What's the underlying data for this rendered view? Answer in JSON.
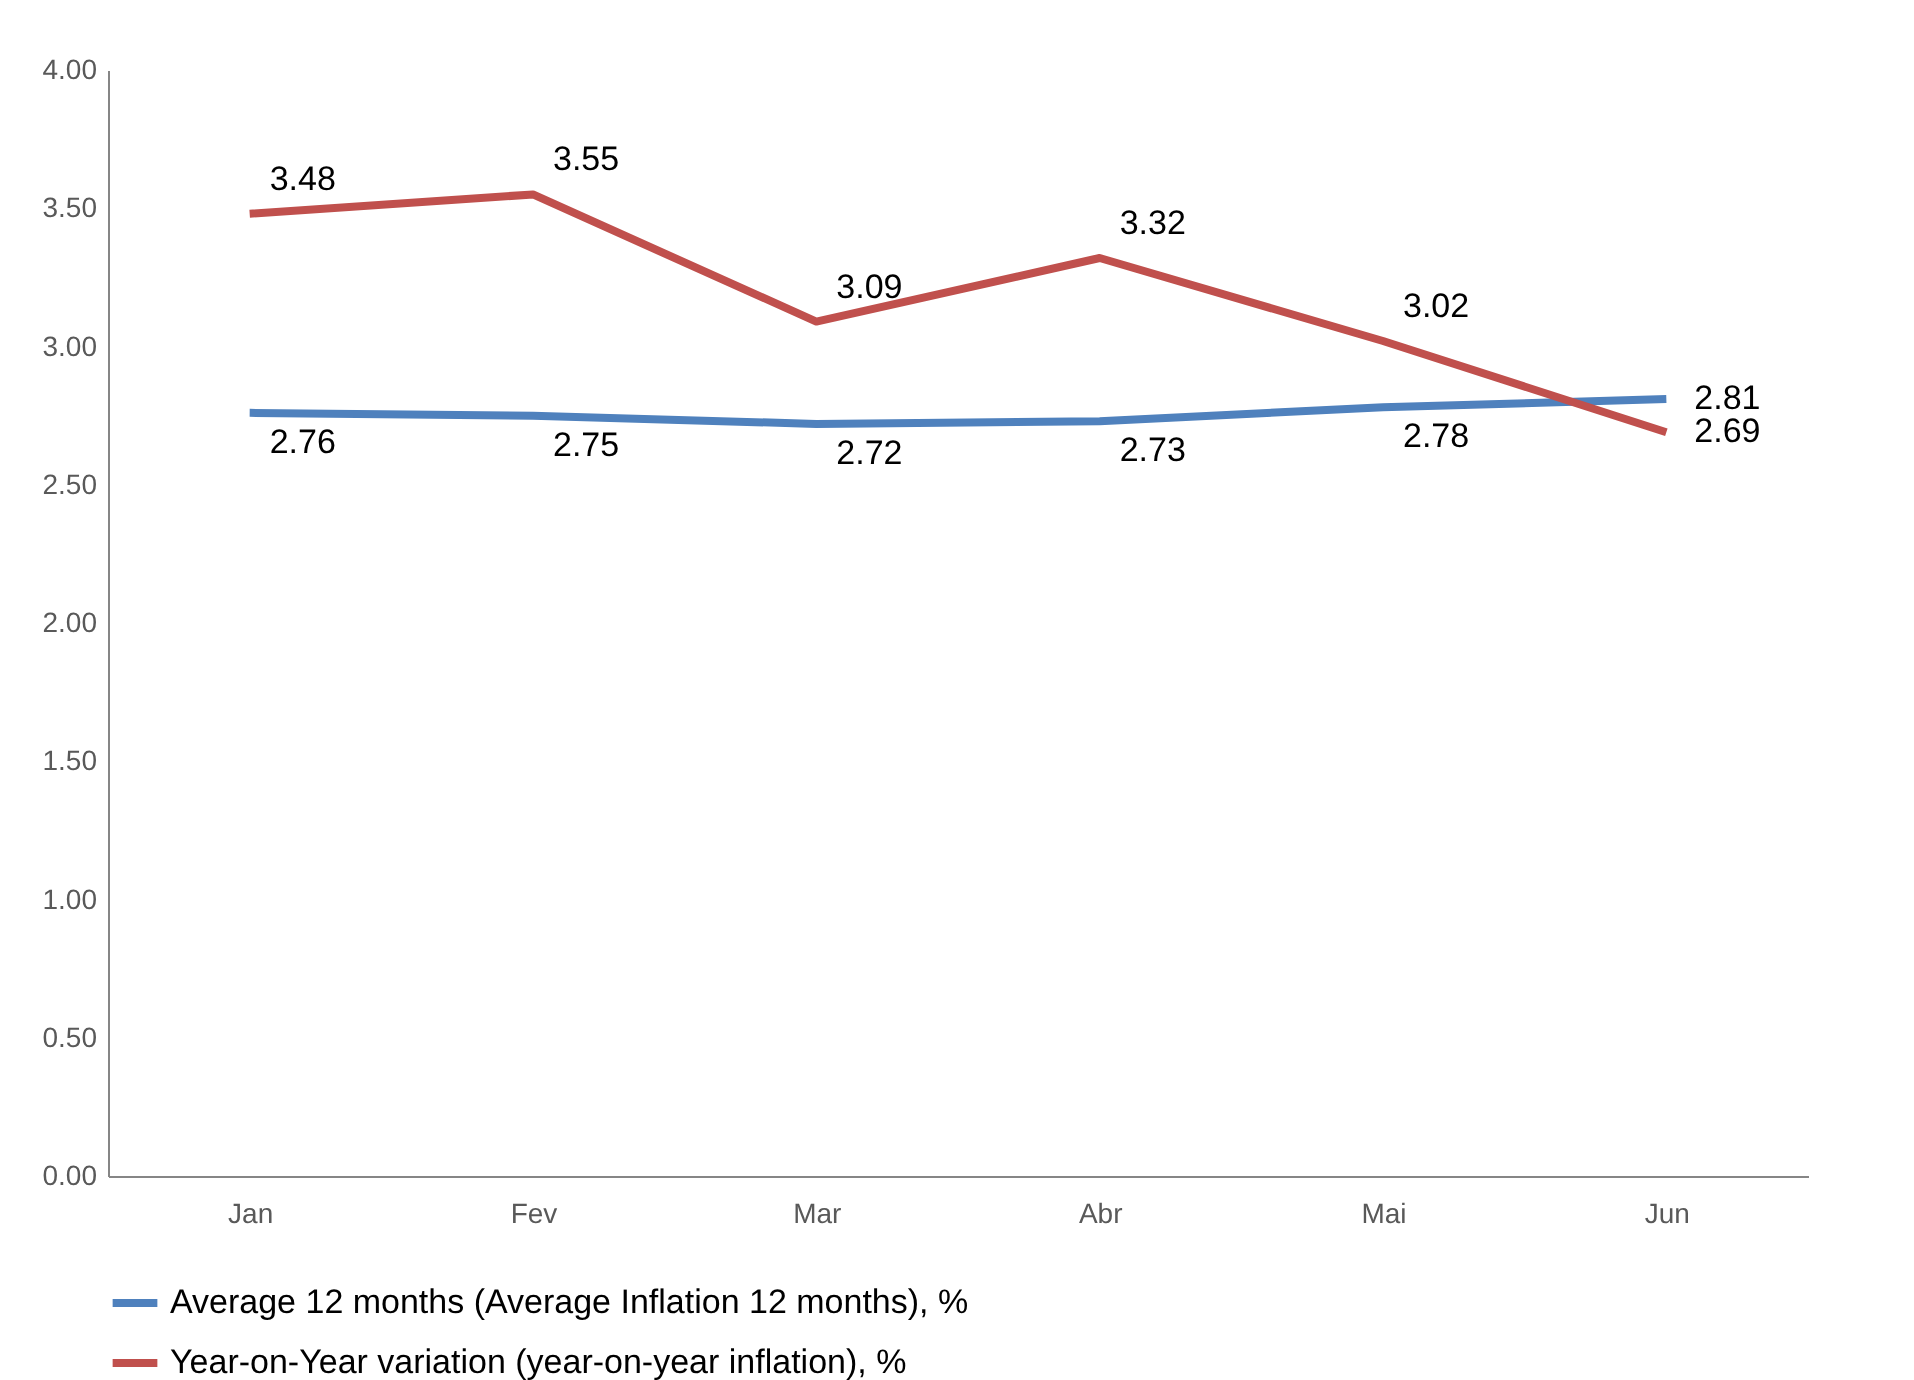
{
  "chart_data": {
    "type": "line",
    "categories": [
      "Jan",
      "Fev",
      "Mar",
      "Abr",
      "Mai",
      "Jun"
    ],
    "series": [
      {
        "name": "Average 12 months (Average Inflation 12 months), %",
        "color": "#4f81bd",
        "values": [
          2.76,
          2.75,
          2.72,
          2.73,
          2.78,
          2.81
        ]
      },
      {
        "name": "Year-on-Year variation (year-on-year inflation), %",
        "color": "#c0504d",
        "values": [
          3.48,
          3.55,
          3.09,
          3.32,
          3.02,
          2.69
        ]
      }
    ],
    "ylim": [
      0,
      4
    ],
    "yticks": [
      {
        "value": 0,
        "label": "0.00"
      },
      {
        "value": 0.5,
        "label": "0.50"
      },
      {
        "value": 1,
        "label": "1.00"
      },
      {
        "value": 1.5,
        "label": "1.50"
      },
      {
        "value": 2,
        "label": "2.00"
      },
      {
        "value": 2.5,
        "label": "2.50"
      },
      {
        "value": 3,
        "label": "3.00"
      },
      {
        "value": 3.5,
        "label": "3.50"
      },
      {
        "value": 4,
        "label": "4.00"
      }
    ],
    "data_labels": true,
    "legend": "bottom",
    "grid": false,
    "marker": "none",
    "line_style": "solid"
  }
}
